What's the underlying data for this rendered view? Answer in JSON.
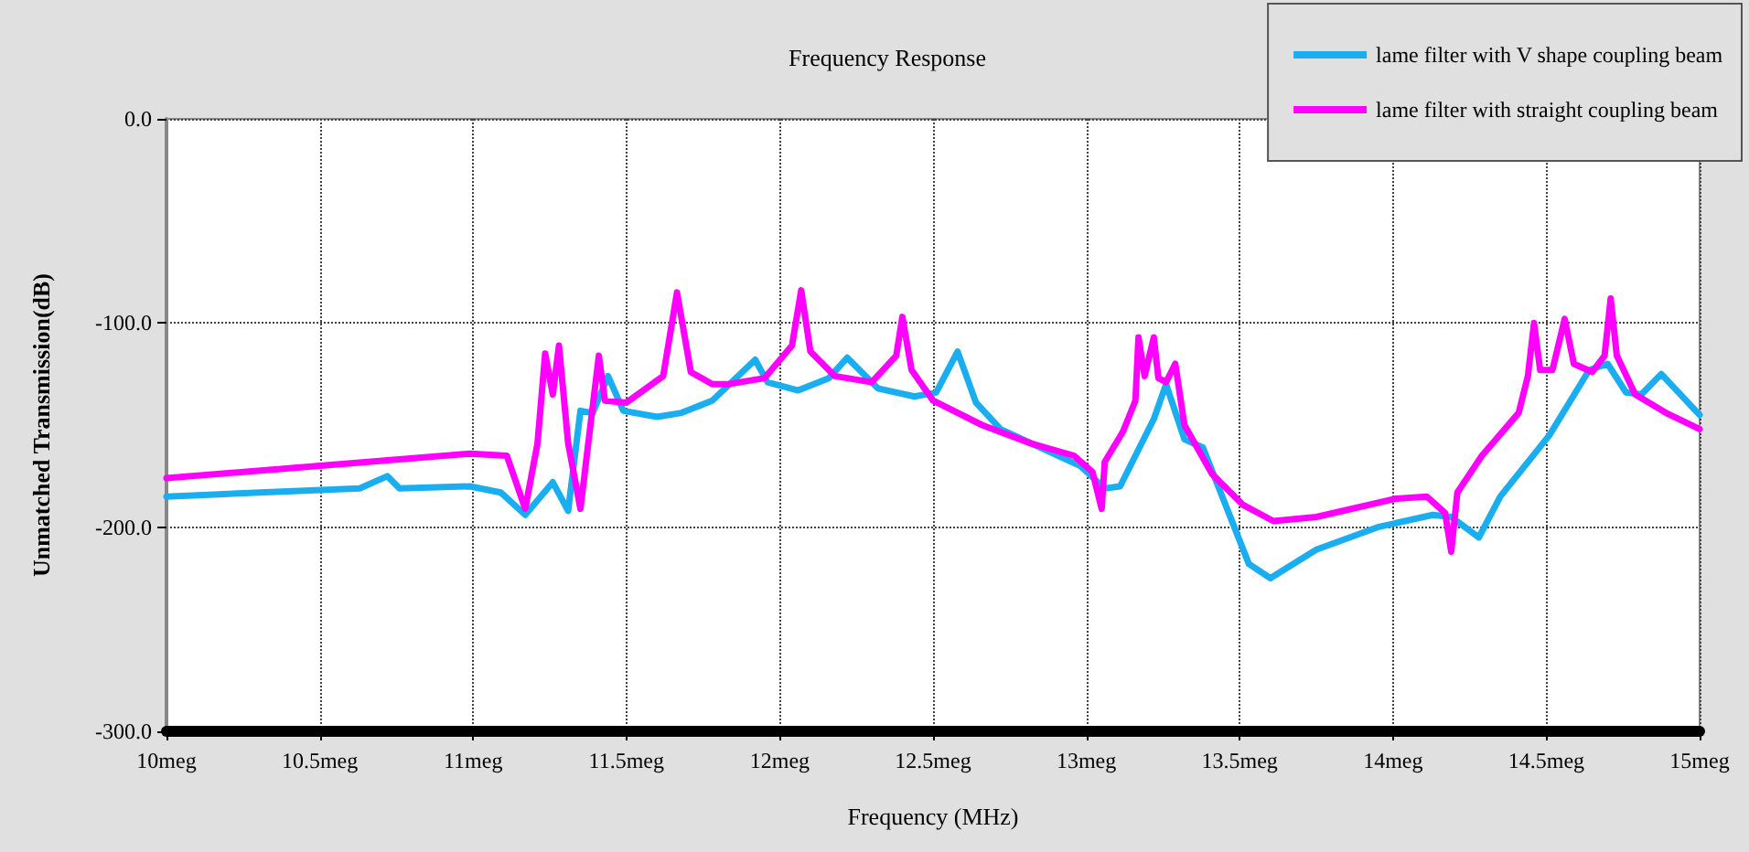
{
  "chart_data": {
    "type": "line",
    "title": "Frequency Response",
    "xlabel": "Frequency (MHz)",
    "ylabel": "Unmatched Transmission(dB)",
    "xlim": [
      10,
      15
    ],
    "xticks": [
      {
        "value": 10,
        "label": "10meg"
      },
      {
        "value": 10.5,
        "label": "10.5meg"
      },
      {
        "value": 11,
        "label": "11meg"
      },
      {
        "value": 11.5,
        "label": "11.5meg"
      },
      {
        "value": 12,
        "label": "12meg"
      },
      {
        "value": 12.5,
        "label": "12.5meg"
      },
      {
        "value": 13,
        "label": "13meg"
      },
      {
        "value": 13.5,
        "label": "13.5meg"
      },
      {
        "value": 14,
        "label": "14meg"
      },
      {
        "value": 14.5,
        "label": "14.5meg"
      },
      {
        "value": 15,
        "label": "15meg"
      }
    ],
    "ylim": [
      -300,
      0
    ],
    "yticks": [
      {
        "value": -300,
        "label": "-300.0"
      },
      {
        "value": -200,
        "label": "-200.0"
      },
      {
        "value": -100,
        "label": "-100.0"
      },
      {
        "value": 0,
        "label": "0.0"
      }
    ],
    "grid": true,
    "legend": "top right",
    "marker": "none",
    "line_style": "solid",
    "series": [
      {
        "name": "lame filter with V shape coupling beam",
        "color": "#1aaef0",
        "x": [
          10.0,
          10.63,
          10.72,
          10.76,
          10.99,
          11.09,
          11.17,
          11.26,
          11.31,
          11.35,
          11.39,
          11.44,
          11.49,
          11.6,
          11.68,
          11.78,
          11.92,
          11.96,
          12.06,
          12.16,
          12.22,
          12.32,
          12.44,
          12.51,
          12.58,
          12.64,
          12.72,
          12.98,
          13.06,
          13.11,
          13.22,
          13.26,
          13.32,
          13.38,
          13.53,
          13.6,
          13.75,
          13.95,
          14.13,
          14.19,
          14.28,
          14.35,
          14.51,
          14.64,
          14.7,
          14.76,
          14.81,
          14.875,
          15.0
        ],
        "values": [
          -185,
          -181,
          -175,
          -181,
          -180,
          -183,
          -194,
          -178,
          -192,
          -143,
          -144,
          -126,
          -143,
          -146,
          -144,
          -138,
          -118,
          -129,
          -133,
          -127,
          -117,
          -132,
          -136,
          -134,
          -114,
          -139,
          -152,
          -170,
          -181,
          -180,
          -147,
          -130,
          -157,
          -161,
          -218,
          -225,
          -211,
          -200,
          -194,
          -195,
          -205,
          -185,
          -155,
          -123,
          -120,
          -134,
          -135,
          -125,
          -145
        ]
      },
      {
        "name": "lame filter with straight coupling beam",
        "color": "#ff00ff",
        "x": [
          10.0,
          10.99,
          11.11,
          11.17,
          11.21,
          11.235,
          11.26,
          11.28,
          11.31,
          11.35,
          11.41,
          11.43,
          11.5,
          11.62,
          11.665,
          11.71,
          11.78,
          11.83,
          11.95,
          12.04,
          12.07,
          12.1,
          12.18,
          12.3,
          12.38,
          12.4,
          12.43,
          12.5,
          12.66,
          12.82,
          12.96,
          13.02,
          13.05,
          13.06,
          13.12,
          13.16,
          13.17,
          13.19,
          13.22,
          13.235,
          13.26,
          13.29,
          13.32,
          13.41,
          13.51,
          13.61,
          13.75,
          14.01,
          14.11,
          14.17,
          14.19,
          14.21,
          14.29,
          14.41,
          14.44,
          14.46,
          14.48,
          14.52,
          14.56,
          14.59,
          14.65,
          14.69,
          14.71,
          14.73,
          14.79,
          14.89,
          15.0
        ],
        "values": [
          -176,
          -164,
          -165,
          -191,
          -159,
          -115,
          -135,
          -111,
          -159,
          -191,
          -116,
          -138,
          -139,
          -126,
          -85,
          -124,
          -130,
          -130,
          -127,
          -111,
          -84,
          -114,
          -126,
          -129,
          -116,
          -97,
          -123,
          -138,
          -150,
          -159,
          -165,
          -173,
          -191,
          -168,
          -153,
          -138,
          -107,
          -126,
          -107,
          -127,
          -129,
          -120,
          -150,
          -174,
          -189,
          -197,
          -195,
          -186,
          -185,
          -193,
          -212,
          -183,
          -165,
          -144,
          -126,
          -100,
          -123,
          -123,
          -98,
          -120,
          -124,
          -116,
          -88,
          -116,
          -135,
          -144,
          -152
        ]
      }
    ]
  }
}
